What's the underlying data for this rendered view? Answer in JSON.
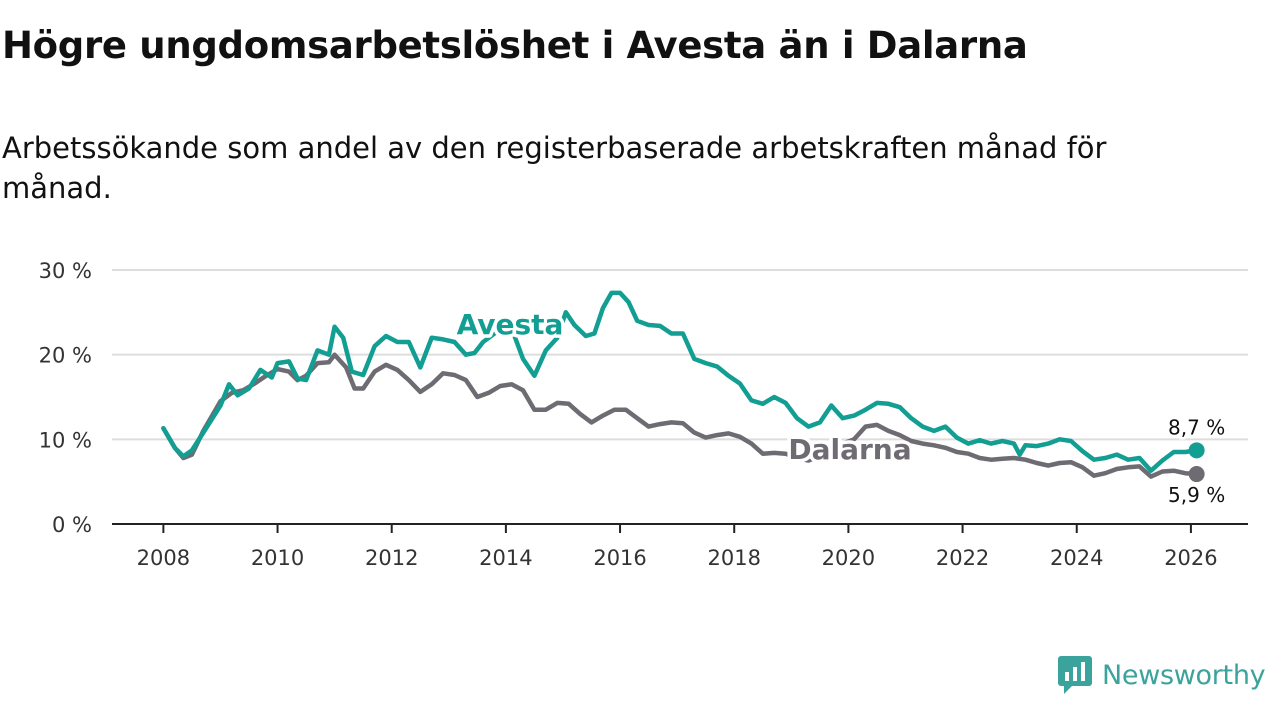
{
  "title": "Högre ungdomsarbetslöshet i Avesta än i Dalarna",
  "subtitle": "Arbetssökande som andel av den registerbaserade arbetskraften månad för månad.",
  "brand": {
    "name": "Newsworthy"
  },
  "colors": {
    "avesta": "#129e93",
    "dalarna": "#6e6b73",
    "grid": "#dddddd",
    "axis": "#333333"
  },
  "chart_data": {
    "type": "line",
    "title": "Högre ungdomsarbetslöshet i Avesta än i Dalarna",
    "xlabel": "",
    "ylabel": "",
    "xlim": [
      2007.1,
      2027.0
    ],
    "ylim": [
      0,
      30
    ],
    "x_ticks": [
      2008,
      2010,
      2012,
      2014,
      2016,
      2018,
      2020,
      2022,
      2024,
      2026
    ],
    "x_tick_labels": [
      "2008",
      "2010",
      "2012",
      "2014",
      "2016",
      "2018",
      "2020",
      "2022",
      "2024",
      "2026"
    ],
    "y_ticks": [
      0,
      10,
      20,
      30
    ],
    "y_tick_labels": [
      "0 %",
      "10 %",
      "20 %",
      "30 %"
    ],
    "grid": true,
    "series": [
      {
        "name": "Avesta",
        "label": "Avesta",
        "end_label": "8,7 %",
        "points": [
          [
            2008.0,
            11.3
          ],
          [
            2008.2,
            9.0
          ],
          [
            2008.35,
            8.0
          ],
          [
            2008.5,
            8.7
          ],
          [
            2008.7,
            10.8
          ],
          [
            2009.0,
            14.0
          ],
          [
            2009.15,
            16.5
          ],
          [
            2009.3,
            15.2
          ],
          [
            2009.5,
            16.0
          ],
          [
            2009.7,
            18.2
          ],
          [
            2009.9,
            17.3
          ],
          [
            2010.0,
            19.0
          ],
          [
            2010.2,
            19.2
          ],
          [
            2010.35,
            17.2
          ],
          [
            2010.5,
            17.0
          ],
          [
            2010.7,
            20.5
          ],
          [
            2010.9,
            20.0
          ],
          [
            2011.0,
            23.3
          ],
          [
            2011.15,
            22.0
          ],
          [
            2011.3,
            18.0
          ],
          [
            2011.5,
            17.6
          ],
          [
            2011.7,
            21.0
          ],
          [
            2011.9,
            22.2
          ],
          [
            2012.1,
            21.5
          ],
          [
            2012.3,
            21.5
          ],
          [
            2012.5,
            18.5
          ],
          [
            2012.7,
            22.0
          ],
          [
            2012.9,
            21.8
          ],
          [
            2013.1,
            21.5
          ],
          [
            2013.3,
            20.0
          ],
          [
            2013.45,
            20.2
          ],
          [
            2013.6,
            21.5
          ],
          [
            2013.8,
            22.5
          ],
          [
            2014.0,
            23.4
          ],
          [
            2014.15,
            22.2
          ],
          [
            2014.3,
            19.5
          ],
          [
            2014.5,
            17.5
          ],
          [
            2014.7,
            20.5
          ],
          [
            2014.9,
            22.0
          ],
          [
            2015.05,
            25.0
          ],
          [
            2015.2,
            23.5
          ],
          [
            2015.4,
            22.2
          ],
          [
            2015.55,
            22.5
          ],
          [
            2015.7,
            25.5
          ],
          [
            2015.85,
            27.3
          ],
          [
            2016.0,
            27.3
          ],
          [
            2016.15,
            26.2
          ],
          [
            2016.3,
            24.0
          ],
          [
            2016.5,
            23.5
          ],
          [
            2016.7,
            23.4
          ],
          [
            2016.9,
            22.5
          ],
          [
            2017.1,
            22.5
          ],
          [
            2017.3,
            19.5
          ],
          [
            2017.5,
            19.0
          ],
          [
            2017.7,
            18.6
          ],
          [
            2017.9,
            17.5
          ],
          [
            2018.1,
            16.6
          ],
          [
            2018.3,
            14.6
          ],
          [
            2018.5,
            14.2
          ],
          [
            2018.7,
            15.0
          ],
          [
            2018.9,
            14.3
          ],
          [
            2019.1,
            12.5
          ],
          [
            2019.3,
            11.5
          ],
          [
            2019.5,
            12.0
          ],
          [
            2019.7,
            14.0
          ],
          [
            2019.9,
            12.5
          ],
          [
            2020.1,
            12.8
          ],
          [
            2020.3,
            13.5
          ],
          [
            2020.5,
            14.3
          ],
          [
            2020.7,
            14.2
          ],
          [
            2020.9,
            13.8
          ],
          [
            2021.1,
            12.5
          ],
          [
            2021.3,
            11.5
          ],
          [
            2021.5,
            11.0
          ],
          [
            2021.7,
            11.5
          ],
          [
            2021.9,
            10.2
          ],
          [
            2022.1,
            9.5
          ],
          [
            2022.3,
            9.9
          ],
          [
            2022.5,
            9.5
          ],
          [
            2022.7,
            9.8
          ],
          [
            2022.9,
            9.5
          ],
          [
            2023.0,
            8.2
          ],
          [
            2023.1,
            9.3
          ],
          [
            2023.3,
            9.2
          ],
          [
            2023.5,
            9.5
          ],
          [
            2023.7,
            10.0
          ],
          [
            2023.9,
            9.8
          ],
          [
            2024.1,
            8.6
          ],
          [
            2024.3,
            7.6
          ],
          [
            2024.5,
            7.8
          ],
          [
            2024.7,
            8.2
          ],
          [
            2024.9,
            7.6
          ],
          [
            2025.1,
            7.8
          ],
          [
            2025.3,
            6.3
          ],
          [
            2025.5,
            7.5
          ],
          [
            2025.7,
            8.5
          ],
          [
            2025.9,
            8.5
          ],
          [
            2026.1,
            8.7
          ]
        ]
      },
      {
        "name": "Dalarna",
        "label": "Dalarna",
        "end_label": "5,9 %",
        "points": [
          [
            2008.0,
            11.3
          ],
          [
            2008.2,
            9.0
          ],
          [
            2008.35,
            7.8
          ],
          [
            2008.5,
            8.2
          ],
          [
            2008.7,
            11.0
          ],
          [
            2009.0,
            14.5
          ],
          [
            2009.2,
            15.5
          ],
          [
            2009.4,
            15.8
          ],
          [
            2009.6,
            16.6
          ],
          [
            2009.8,
            17.5
          ],
          [
            2010.0,
            18.3
          ],
          [
            2010.2,
            18.0
          ],
          [
            2010.35,
            17.0
          ],
          [
            2010.5,
            17.5
          ],
          [
            2010.7,
            19.0
          ],
          [
            2010.9,
            19.1
          ],
          [
            2011.0,
            20.0
          ],
          [
            2011.2,
            18.5
          ],
          [
            2011.35,
            16.0
          ],
          [
            2011.5,
            16.0
          ],
          [
            2011.7,
            18.0
          ],
          [
            2011.9,
            18.8
          ],
          [
            2012.1,
            18.2
          ],
          [
            2012.3,
            17.0
          ],
          [
            2012.5,
            15.6
          ],
          [
            2012.7,
            16.5
          ],
          [
            2012.9,
            17.8
          ],
          [
            2013.1,
            17.6
          ],
          [
            2013.3,
            17.0
          ],
          [
            2013.5,
            15.0
          ],
          [
            2013.7,
            15.5
          ],
          [
            2013.9,
            16.3
          ],
          [
            2014.1,
            16.5
          ],
          [
            2014.3,
            15.8
          ],
          [
            2014.5,
            13.5
          ],
          [
            2014.7,
            13.5
          ],
          [
            2014.9,
            14.3
          ],
          [
            2015.1,
            14.2
          ],
          [
            2015.3,
            13.0
          ],
          [
            2015.5,
            12.0
          ],
          [
            2015.7,
            12.8
          ],
          [
            2015.9,
            13.5
          ],
          [
            2016.1,
            13.5
          ],
          [
            2016.3,
            12.5
          ],
          [
            2016.5,
            11.5
          ],
          [
            2016.7,
            11.8
          ],
          [
            2016.9,
            12.0
          ],
          [
            2017.1,
            11.9
          ],
          [
            2017.3,
            10.8
          ],
          [
            2017.5,
            10.2
          ],
          [
            2017.7,
            10.5
          ],
          [
            2017.9,
            10.7
          ],
          [
            2018.1,
            10.3
          ],
          [
            2018.3,
            9.5
          ],
          [
            2018.5,
            8.3
          ],
          [
            2018.7,
            8.4
          ],
          [
            2018.9,
            8.3
          ],
          [
            2019.1,
            7.8
          ],
          [
            2019.3,
            7.5
          ],
          [
            2019.5,
            8.0
          ],
          [
            2019.7,
            9.0
          ],
          [
            2019.9,
            9.5
          ],
          [
            2020.1,
            10.0
          ],
          [
            2020.3,
            11.5
          ],
          [
            2020.5,
            11.7
          ],
          [
            2020.7,
            11.0
          ],
          [
            2020.9,
            10.5
          ],
          [
            2021.1,
            9.8
          ],
          [
            2021.3,
            9.5
          ],
          [
            2021.5,
            9.3
          ],
          [
            2021.7,
            9.0
          ],
          [
            2021.9,
            8.5
          ],
          [
            2022.1,
            8.3
          ],
          [
            2022.3,
            7.8
          ],
          [
            2022.5,
            7.6
          ],
          [
            2022.7,
            7.7
          ],
          [
            2022.9,
            7.8
          ],
          [
            2023.1,
            7.6
          ],
          [
            2023.3,
            7.2
          ],
          [
            2023.5,
            6.9
          ],
          [
            2023.7,
            7.2
          ],
          [
            2023.9,
            7.3
          ],
          [
            2024.1,
            6.7
          ],
          [
            2024.3,
            5.7
          ],
          [
            2024.5,
            6.0
          ],
          [
            2024.7,
            6.5
          ],
          [
            2024.9,
            6.7
          ],
          [
            2025.1,
            6.8
          ],
          [
            2025.3,
            5.6
          ],
          [
            2025.5,
            6.2
          ],
          [
            2025.7,
            6.3
          ],
          [
            2025.9,
            6.0
          ],
          [
            2026.1,
            5.9
          ]
        ]
      }
    ]
  }
}
